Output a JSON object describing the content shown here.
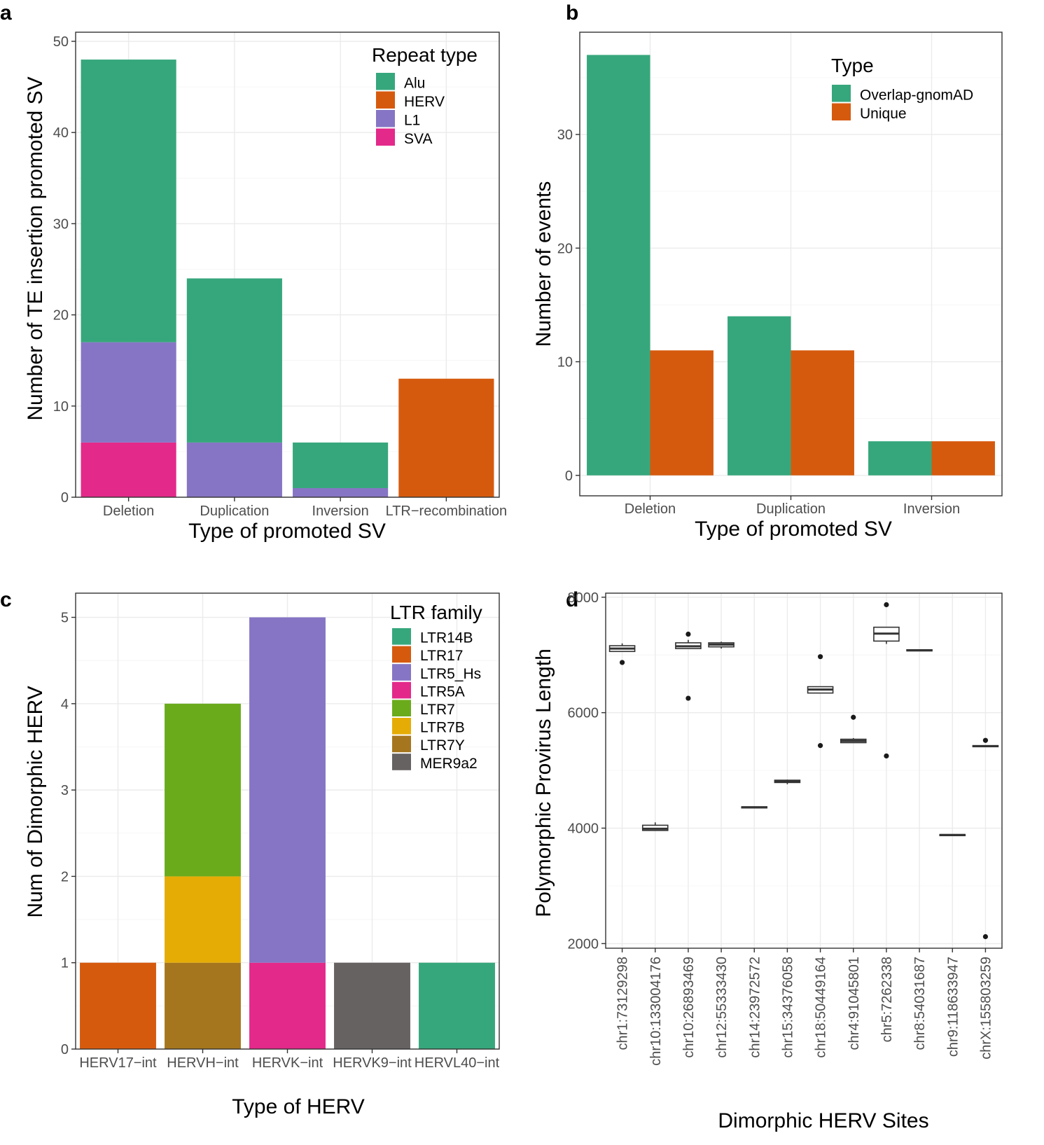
{
  "colors": {
    "Alu": "#36A77C",
    "HERV": "#D65A0E",
    "L1": "#8675C4",
    "SVA": "#E3298A",
    "Overlap-gnomAD": "#36A77C",
    "Unique": "#D65A0E",
    "LTR14B": "#36A77C",
    "LTR17": "#D65A0E",
    "LTR5_Hs": "#8675C4",
    "LTR5A": "#E3298A",
    "LTR7": "#6AAB1C",
    "LTR7B": "#E5AC06",
    "LTR7Y": "#A6761E",
    "MER9a2": "#666262"
  },
  "chart_data": [
    {
      "panel": "a",
      "type": "bar",
      "stacked": true,
      "categories": [
        "Deletion",
        "Duplication",
        "Inversion",
        "LTR−recombination"
      ],
      "series": [
        {
          "name": "SVA",
          "values": [
            6,
            0,
            0,
            0
          ]
        },
        {
          "name": "L1",
          "values": [
            11,
            6,
            1,
            0
          ]
        },
        {
          "name": "HERV",
          "values": [
            0,
            0,
            0,
            13
          ]
        },
        {
          "name": "Alu",
          "values": [
            31,
            18,
            5,
            0
          ]
        }
      ],
      "xlabel": "Type of promoted SV",
      "ylabel": "Number of TE insertion promoted SV",
      "ylim": [
        0,
        51
      ],
      "yticks": [
        0,
        10,
        20,
        30,
        40,
        50
      ],
      "legend_title": "Repeat type",
      "legend_entries": [
        "Alu",
        "HERV",
        "L1",
        "SVA"
      ]
    },
    {
      "panel": "b",
      "type": "bar",
      "stacked": false,
      "categories": [
        "Deletion",
        "Duplication",
        "Inversion"
      ],
      "series": [
        {
          "name": "Overlap-gnomAD",
          "values": [
            37,
            14,
            3
          ]
        },
        {
          "name": "Unique",
          "values": [
            11,
            11,
            3
          ]
        }
      ],
      "xlabel": "Type of promoted SV",
      "ylabel": "Number of events",
      "ylim": [
        -1.8,
        39
      ],
      "yticks": [
        0,
        10,
        20,
        30
      ],
      "legend_title": "Type",
      "legend_entries": [
        "Overlap-gnomAD",
        "Unique"
      ]
    },
    {
      "panel": "c",
      "type": "bar",
      "stacked": true,
      "categories": [
        "HERV17−int",
        "HERVH−int",
        "HERVK−int",
        "HERVK9−int",
        "HERVL40−int"
      ],
      "series": [
        {
          "name": "LTR17",
          "values": [
            1,
            0,
            0,
            0,
            0
          ]
        },
        {
          "name": "LTR7Y",
          "values": [
            0,
            1,
            0,
            0,
            0
          ]
        },
        {
          "name": "LTR7B",
          "values": [
            0,
            1,
            0,
            0,
            0
          ]
        },
        {
          "name": "LTR7",
          "values": [
            0,
            2,
            0,
            0,
            0
          ]
        },
        {
          "name": "LTR5A",
          "values": [
            0,
            0,
            1,
            0,
            0
          ]
        },
        {
          "name": "LTR5_Hs",
          "values": [
            0,
            0,
            4,
            0,
            0
          ]
        },
        {
          "name": "MER9a2",
          "values": [
            0,
            0,
            0,
            1,
            0
          ]
        },
        {
          "name": "LTR14B",
          "values": [
            0,
            0,
            0,
            0,
            1
          ]
        }
      ],
      "xlabel": "Type of HERV",
      "ylabel": "Num of Dimorphic HERV",
      "ylim": [
        0,
        5.28
      ],
      "yticks": [
        0,
        1,
        2,
        3,
        4,
        5
      ],
      "legend_title": "LTR family",
      "legend_entries": [
        "LTR14B",
        "LTR17",
        "LTR5_Hs",
        "LTR5A",
        "LTR7",
        "LTR7B",
        "LTR7Y",
        "MER9a2"
      ]
    },
    {
      "panel": "d",
      "type": "box",
      "categories": [
        "chr1:73129298",
        "chr10:133004176",
        "chr10:26893469",
        "chr12:55333430",
        "chr14:23972572",
        "chr15:34376058",
        "chr18:50449164",
        "chr4:91045801",
        "chr5:7262338",
        "chr8:54031687",
        "chr9:118633947",
        "chrX:155803259"
      ],
      "boxes": [
        {
          "q1": 7060,
          "median": 7110,
          "q3": 7160,
          "whisker_low": 7060,
          "whisker_high": 7200,
          "outliers": [
            6870
          ]
        },
        {
          "q1": 3960,
          "median": 3990,
          "q3": 4050,
          "whisker_low": 3960,
          "whisker_high": 4100,
          "outliers": []
        },
        {
          "q1": 7110,
          "median": 7150,
          "q3": 7210,
          "whisker_low": 7110,
          "whisker_high": 7260,
          "outliers": [
            7360,
            6250
          ]
        },
        {
          "q1": 7140,
          "median": 7180,
          "q3": 7210,
          "whisker_low": 7110,
          "whisker_high": 7230,
          "outliers": []
        },
        {
          "q1": 4350,
          "median": 4360,
          "q3": 4370,
          "whisker_low": 4350,
          "whisker_high": 4370,
          "outliers": []
        },
        {
          "q1": 4790,
          "median": 4810,
          "q3": 4830,
          "whisker_low": 4760,
          "whisker_high": 4840,
          "outliers": []
        },
        {
          "q1": 6340,
          "median": 6400,
          "q3": 6450,
          "whisker_low": 6340,
          "whisker_high": 6450,
          "outliers": [
            6970,
            5430
          ]
        },
        {
          "q1": 5480,
          "median": 5510,
          "q3": 5540,
          "whisker_low": 5480,
          "whisker_high": 5560,
          "outliers": [
            5920
          ]
        },
        {
          "q1": 7240,
          "median": 7370,
          "q3": 7480,
          "whisker_low": 7190,
          "whisker_high": 7480,
          "outliers": [
            7870,
            5250
          ]
        },
        {
          "q1": 7070,
          "median": 7080,
          "q3": 7090,
          "whisker_low": 7070,
          "whisker_high": 7090,
          "outliers": []
        },
        {
          "q1": 3870,
          "median": 3880,
          "q3": 3890,
          "whisker_low": 3870,
          "whisker_high": 3890,
          "outliers": []
        },
        {
          "q1": 5410,
          "median": 5420,
          "q3": 5430,
          "whisker_low": 5410,
          "whisker_high": 5430,
          "outliers": [
            5520,
            2120
          ]
        }
      ],
      "xlabel": "Dimorphic HERV Sites",
      "ylabel": "Polymorphic Provirus Length",
      "ylim": [
        1920,
        8070
      ],
      "yticks": [
        2000,
        4000,
        6000,
        8000
      ]
    }
  ]
}
